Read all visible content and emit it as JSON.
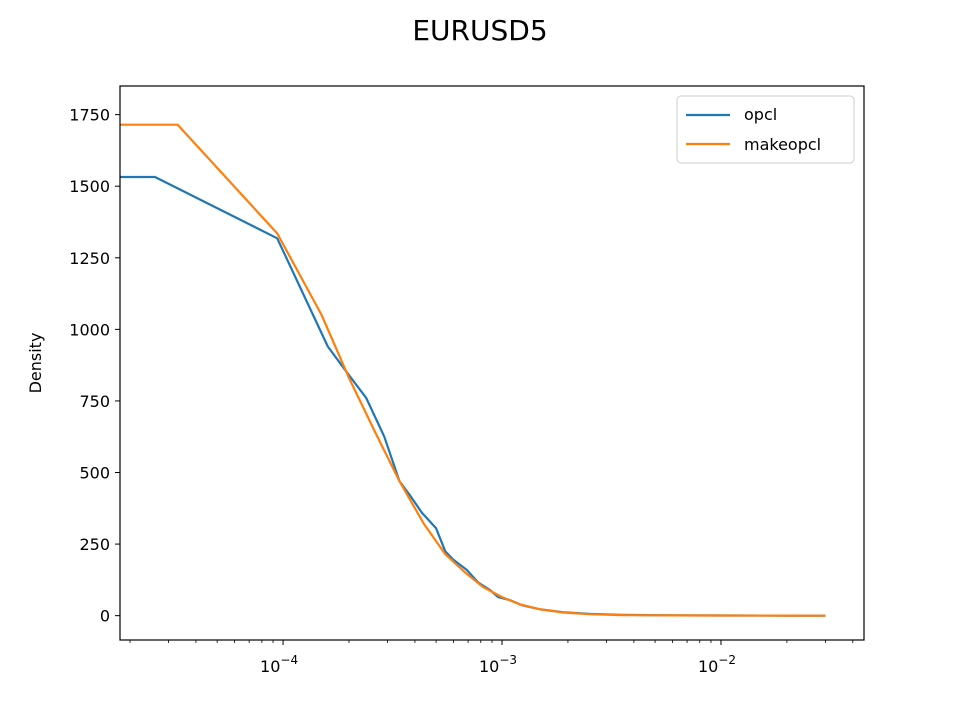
{
  "chart_data": {
    "type": "line",
    "title": "EURUSD5",
    "xlabel": "",
    "ylabel": "Density",
    "xscale": "log",
    "xlim": [
      1.8e-05,
      0.045
    ],
    "ylim": [
      -85,
      1850
    ],
    "yticks": [
      0,
      250,
      500,
      750,
      1000,
      1250,
      1500,
      1750
    ],
    "ytick_labels": [
      "0",
      "250",
      "500",
      "750",
      "1000",
      "1250",
      "1500",
      "1750"
    ],
    "xticks": [
      0.0001,
      0.001,
      0.01
    ],
    "xtick_labels": [
      {
        "base": "10",
        "exp": "−4"
      },
      {
        "base": "10",
        "exp": "−3"
      },
      {
        "base": "10",
        "exp": "−2"
      }
    ],
    "grid": false,
    "legend_position": "top-right",
    "series": [
      {
        "name": "opcl",
        "color": "#1f77b4",
        "points": [
          [
            1.8e-05,
            1532
          ],
          [
            2.6e-05,
            1532
          ],
          [
            9.4e-05,
            1318
          ],
          [
            0.00016,
            940
          ],
          [
            0.0002,
            840
          ],
          [
            0.00024,
            760
          ],
          [
            0.00029,
            625
          ],
          [
            0.00034,
            470
          ],
          [
            0.00038,
            420
          ],
          [
            0.00043,
            360
          ],
          [
            0.0005,
            305
          ],
          [
            0.00055,
            225
          ],
          [
            0.0006,
            195
          ],
          [
            0.00069,
            160
          ],
          [
            0.00078,
            115
          ],
          [
            0.00088,
            90
          ],
          [
            0.00096,
            65
          ],
          [
            0.00108,
            55
          ],
          [
            0.00125,
            35
          ],
          [
            0.0015,
            22
          ],
          [
            0.0019,
            12
          ],
          [
            0.0025,
            6
          ],
          [
            0.0035,
            3
          ],
          [
            0.006,
            1
          ],
          [
            0.01,
            0.5
          ],
          [
            0.02,
            0.2
          ],
          [
            0.03,
            0
          ]
        ]
      },
      {
        "name": "makeopcl",
        "color": "#ff7f0e",
        "points": [
          [
            1.8e-05,
            1715
          ],
          [
            3.3e-05,
            1715
          ],
          [
            9.4e-05,
            1335
          ],
          [
            0.00015,
            1050
          ],
          [
            0.0002,
            830
          ],
          [
            0.00026,
            650
          ],
          [
            0.00034,
            470
          ],
          [
            0.00044,
            320
          ],
          [
            0.00055,
            215
          ],
          [
            0.00068,
            150
          ],
          [
            0.00082,
            100
          ],
          [
            0.001,
            65
          ],
          [
            0.0012,
            40
          ],
          [
            0.0015,
            22
          ],
          [
            0.0019,
            11
          ],
          [
            0.0025,
            5
          ],
          [
            0.0035,
            2
          ],
          [
            0.006,
            1
          ],
          [
            0.01,
            0.5
          ],
          [
            0.02,
            0.2
          ],
          [
            0.03,
            0
          ]
        ]
      }
    ]
  }
}
